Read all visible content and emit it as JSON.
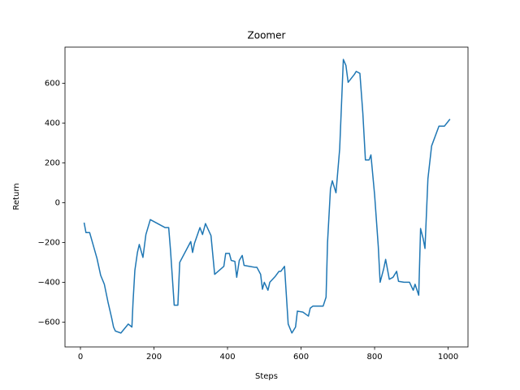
{
  "chart_data": {
    "type": "line",
    "title": "Zoomer",
    "x_label": "Steps",
    "y_label": "Return",
    "x": [
      10,
      15,
      25,
      45,
      55,
      65,
      75,
      85,
      90,
      95,
      110,
      130,
      140,
      143,
      148,
      155,
      160,
      170,
      178,
      190,
      230,
      240,
      245,
      255,
      265,
      270,
      300,
      305,
      310,
      325,
      332,
      340,
      355,
      365,
      390,
      395,
      405,
      410,
      420,
      425,
      432,
      440,
      445,
      460,
      475,
      480,
      490,
      495,
      500,
      510,
      515,
      530,
      540,
      545,
      555,
      565,
      575,
      585,
      590,
      605,
      620,
      625,
      632,
      645,
      660,
      668,
      672,
      680,
      685,
      690,
      695,
      705,
      715,
      722,
      728,
      745,
      750,
      760,
      768,
      775,
      785,
      790,
      800,
      810,
      815,
      825,
      830,
      840,
      850,
      860,
      865,
      880,
      895,
      905,
      910,
      920,
      925,
      932,
      937,
      945,
      955,
      975,
      990,
      1005
    ],
    "series": [
      {
        "name": "Return",
        "color": "#1f77b4",
        "values": [
          -100,
          -150,
          -150,
          -280,
          -365,
          -410,
          -500,
          -580,
          -625,
          -645,
          -655,
          -610,
          -625,
          -500,
          -340,
          -250,
          -210,
          -275,
          -160,
          -85,
          -125,
          -125,
          -240,
          -515,
          -515,
          -300,
          -195,
          -250,
          -205,
          -125,
          -160,
          -105,
          -165,
          -360,
          -320,
          -255,
          -255,
          -290,
          -295,
          -375,
          -290,
          -265,
          -315,
          -320,
          -325,
          -325,
          -360,
          -435,
          -400,
          -440,
          -400,
          -370,
          -345,
          -345,
          -320,
          -610,
          -655,
          -625,
          -545,
          -550,
          -570,
          -530,
          -520,
          -520,
          -520,
          -475,
          -200,
          70,
          110,
          80,
          50,
          270,
          720,
          690,
          605,
          645,
          660,
          650,
          450,
          215,
          215,
          240,
          40,
          -220,
          -400,
          -330,
          -285,
          -385,
          -375,
          -345,
          -395,
          -400,
          -400,
          -440,
          -410,
          -465,
          -130,
          -180,
          -230,
          120,
          285,
          385,
          385,
          420
        ]
      }
    ],
    "xlim": [
      -42,
      1054
    ],
    "ylim": [
      -725,
      782
    ],
    "xticks": [
      0,
      200,
      400,
      600,
      800,
      1000
    ],
    "yticks": [
      {
        "value": -600,
        "label": "−600"
      },
      {
        "value": -400,
        "label": "−400"
      },
      {
        "value": -200,
        "label": "−200"
      },
      0,
      200,
      400,
      600
    ],
    "grid": false
  }
}
